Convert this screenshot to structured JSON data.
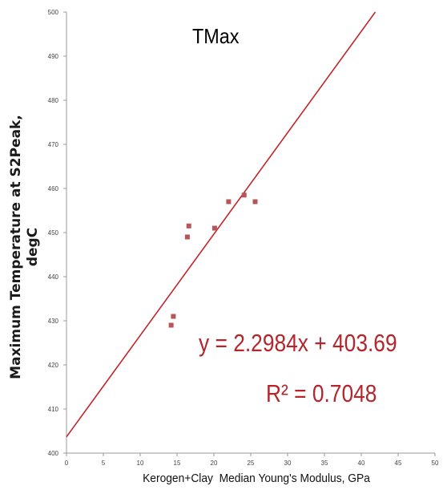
{
  "chart_data": {
    "type": "scatter",
    "title": "TMax",
    "xlabel": "Kerogen+Clay  Median Young's Modulus, GPa",
    "ylabel": "Maximum Temperature at S2Peak, degC",
    "ylabel_lines": [
      "Maximum Temperature at S2Peak,",
      "degC"
    ],
    "xlim": [
      0,
      50
    ],
    "ylim": [
      400,
      500
    ],
    "xticks": [
      0,
      5,
      10,
      15,
      20,
      25,
      30,
      35,
      40,
      45,
      50
    ],
    "yticks": [
      400,
      410,
      420,
      430,
      440,
      450,
      460,
      470,
      480,
      490,
      500
    ],
    "grid": false,
    "points": [
      {
        "x": 14.2,
        "y": 429
      },
      {
        "x": 14.5,
        "y": 431
      },
      {
        "x": 16.4,
        "y": 449
      },
      {
        "x": 16.6,
        "y": 451.5
      },
      {
        "x": 20.1,
        "y": 451
      },
      {
        "x": 22.0,
        "y": 457
      },
      {
        "x": 24.1,
        "y": 458.5
      },
      {
        "x": 25.6,
        "y": 457
      }
    ],
    "trendline": {
      "slope": 2.2984,
      "intercept": 403.69
    },
    "equation_text": "y = 2.2984x + 403.69",
    "r2_text": "R² = 0.7048",
    "marker_color": "#b8555a",
    "line_color": "#c0272d",
    "annotation_color": "#b3262b"
  }
}
